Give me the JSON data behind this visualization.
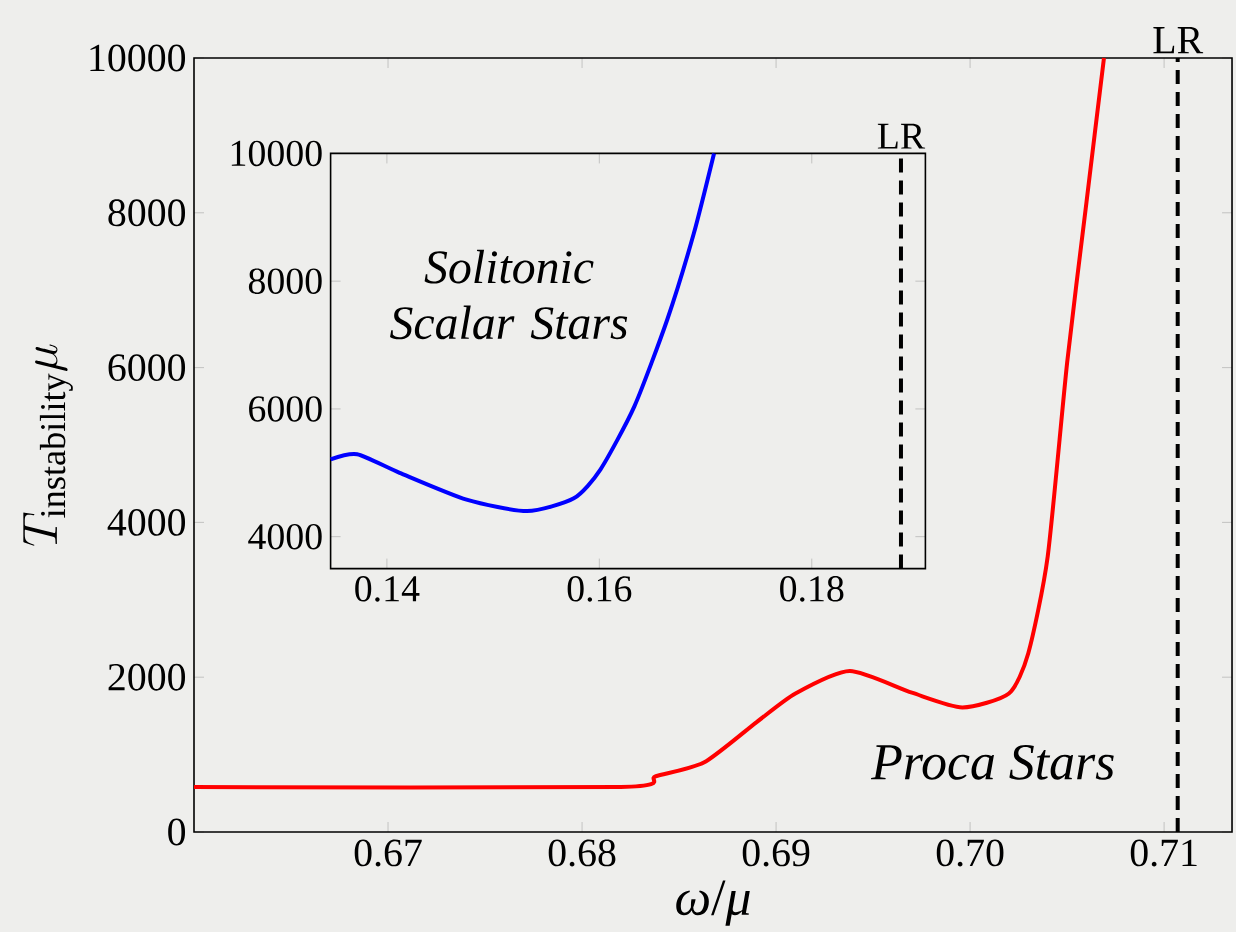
{
  "chart_data": [
    {
      "type": "line",
      "xlabel": "*ω*/*μ*",
      "ylabel": "T_{\\mathrm{instability}}\\mu",
      "xlim": [
        0.66,
        0.7135
      ],
      "ylim": [
        0,
        10000
      ],
      "xticks": [
        0.67,
        0.68,
        0.69,
        {
          "value": 0.7,
          "label": "0.70"
        },
        0.71
      ],
      "yticks": [
        0,
        2000,
        4000,
        6000,
        8000,
        10000
      ],
      "series": [
        {
          "color": "#ff0000",
          "x": [
            0.66,
            0.682,
            0.6838,
            0.6863,
            0.689,
            0.691,
            0.6938,
            0.697,
            0.6996,
            0.702,
            0.703,
            0.704,
            0.705,
            0.706,
            0.7069
          ],
          "values": [
            580,
            580,
            720,
            900,
            1420,
            1790,
            2080,
            1800,
            1610,
            1790,
            2310,
            3560,
            6060,
            8140,
            10000
          ]
        }
      ],
      "ref_lines": [
        {
          "axis": "x",
          "value": 0.7107,
          "label": "LR",
          "color": "#000000",
          "line_style": "dashed"
        }
      ],
      "annotations": [
        "Proca Stars"
      ],
      "marker": "none",
      "line_style": "solid"
    },
    {
      "type": "line",
      "xlim": [
        0.1347,
        0.1907
      ],
      "ylim": [
        3500,
        10000
      ],
      "xticks": [
        0.14,
        0.16,
        0.18
      ],
      "yticks": [
        4000,
        6000,
        8000,
        10000
      ],
      "series": [
        {
          "color": "#0000ff",
          "x": [
            0.1347,
            0.1372,
            0.1412,
            0.1475,
            0.1532,
            0.1576,
            0.1601,
            0.1633,
            0.1664,
            0.1689,
            0.1708
          ],
          "values": [
            5210,
            5290,
            5000,
            4580,
            4400,
            4600,
            5050,
            6040,
            7400,
            8750,
            10000
          ]
        }
      ],
      "ref_lines": [
        {
          "axis": "x",
          "value": 0.1884,
          "label": "LR",
          "color": "#000000",
          "line_style": "dashed"
        }
      ],
      "annotations": [
        "Solitonic Scalar Stars"
      ],
      "marker": "none",
      "line_style": "solid"
    }
  ]
}
